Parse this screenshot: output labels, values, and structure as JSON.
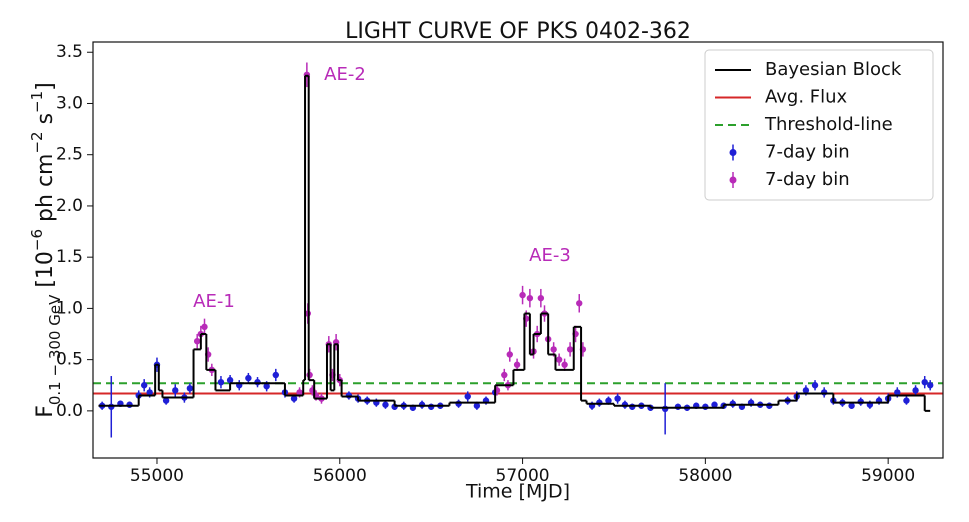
{
  "chart_data": {
    "type": "scatter",
    "title": "LIGHT CURVE OF PKS 0402-362",
    "xlabel": "Time [MJD]",
    "ylabel": [
      "F",
      "0.1 − 300 GeV",
      " [10",
      "−6",
      " ph cm",
      "−2",
      " s",
      "−1",
      "]"
    ],
    "xlim": [
      54650,
      59300
    ],
    "ylim": [
      -0.46,
      3.6
    ],
    "xticks": [
      55000,
      56000,
      57000,
      58000,
      59000
    ],
    "yticks": [
      {
        "value": 0,
        "label": "0.0"
      },
      0.5,
      {
        "value": 1,
        "label": "1.0"
      },
      1.5,
      {
        "value": 2,
        "label": "2.0"
      },
      2.5,
      {
        "value": 3,
        "label": "3.0"
      },
      3.5
    ],
    "legend": "upper right",
    "blocks": {
      "name": "Bayesian Block",
      "color": "#000000",
      "edges": [
        54680,
        54900,
        54990,
        55010,
        55030,
        55200,
        55240,
        55270,
        55320,
        55400,
        55700,
        55800,
        55810,
        55830,
        55860,
        55930,
        55950,
        55970,
        55990,
        56010,
        56100,
        56300,
        56600,
        56850,
        56950,
        57010,
        57040,
        57060,
        57100,
        57140,
        57180,
        57280,
        57320,
        57350,
        57500,
        57700,
        58100,
        58400,
        58500,
        58700,
        59000,
        59200,
        59230
      ],
      "values": [
        0.05,
        0.15,
        0.45,
        0.2,
        0.13,
        0.6,
        0.75,
        0.4,
        0.2,
        0.27,
        0.15,
        0.3,
        3.27,
        0.3,
        0.12,
        0.65,
        0.2,
        0.65,
        0.3,
        0.14,
        0.1,
        0.05,
        0.08,
        0.25,
        0.4,
        0.95,
        0.55,
        0.75,
        0.95,
        0.55,
        0.4,
        0.82,
        0.1,
        0.07,
        0.05,
        0.03,
        0.06,
        0.1,
        0.17,
        0.08,
        0.15,
        0.0
      ]
    },
    "avg_flux": {
      "name": "Avg. Flux",
      "value": 0.17,
      "color": "#d62728"
    },
    "threshold": {
      "name": "Threshold-line",
      "value": 0.27,
      "color": "#2ca02c",
      "dashed": true
    },
    "series": [
      {
        "name": "7-day bin",
        "color": "#1f1fd6",
        "x": [
          54700,
          54750,
          54800,
          54850,
          54900,
          54930,
          54960,
          55000,
          55050,
          55100,
          55150,
          55180,
          55350,
          55400,
          55450,
          55500,
          55550,
          55600,
          55650,
          55700,
          55750,
          56050,
          56100,
          56150,
          56200,
          56250,
          56300,
          56350,
          56400,
          56450,
          56500,
          56550,
          56650,
          56700,
          56750,
          56800,
          56850,
          57380,
          57420,
          57470,
          57520,
          57560,
          57600,
          57650,
          57700,
          57780,
          57850,
          57900,
          57950,
          58000,
          58050,
          58100,
          58150,
          58200,
          58250,
          58300,
          58350,
          58450,
          58500,
          58550,
          58600,
          58650,
          58700,
          58750,
          58800,
          58850,
          58900,
          58950,
          59000,
          59050,
          59100,
          59150,
          59200,
          59230
        ],
        "values": [
          0.05,
          0.04,
          0.07,
          0.06,
          0.15,
          0.25,
          0.18,
          0.45,
          0.1,
          0.2,
          0.13,
          0.22,
          0.28,
          0.3,
          0.25,
          0.32,
          0.28,
          0.24,
          0.35,
          0.18,
          0.12,
          0.15,
          0.12,
          0.1,
          0.08,
          0.06,
          0.04,
          0.05,
          0.03,
          0.06,
          0.04,
          0.05,
          0.07,
          0.14,
          0.05,
          0.1,
          0.18,
          0.05,
          0.08,
          0.1,
          0.12,
          0.06,
          0.04,
          0.05,
          0.03,
          0.02,
          0.04,
          0.03,
          0.05,
          0.04,
          0.06,
          0.05,
          0.07,
          0.04,
          0.08,
          0.06,
          0.05,
          0.1,
          0.14,
          0.2,
          0.25,
          0.18,
          0.1,
          0.08,
          0.05,
          0.09,
          0.06,
          0.1,
          0.12,
          0.18,
          0.1,
          0.2,
          0.28,
          0.25
        ],
        "errors": [
          0.04,
          0.3,
          0.03,
          0.03,
          0.05,
          0.06,
          0.05,
          0.07,
          0.04,
          0.06,
          0.05,
          0.05,
          0.06,
          0.05,
          0.05,
          0.05,
          0.05,
          0.05,
          0.06,
          0.05,
          0.04,
          0.04,
          0.04,
          0.04,
          0.04,
          0.04,
          0.03,
          0.04,
          0.03,
          0.04,
          0.03,
          0.03,
          0.04,
          0.05,
          0.04,
          0.04,
          0.05,
          0.04,
          0.04,
          0.04,
          0.05,
          0.04,
          0.03,
          0.03,
          0.03,
          0.25,
          0.03,
          0.03,
          0.03,
          0.03,
          0.03,
          0.03,
          0.04,
          0.03,
          0.04,
          0.03,
          0.03,
          0.04,
          0.05,
          0.05,
          0.05,
          0.05,
          0.04,
          0.04,
          0.03,
          0.04,
          0.04,
          0.04,
          0.05,
          0.05,
          0.04,
          0.05,
          0.06,
          0.05
        ]
      },
      {
        "name": "7-day bin",
        "color": "#b82bb8",
        "x": [
          55220,
          55240,
          55260,
          55280,
          55300,
          55780,
          55820,
          55825,
          55835,
          55850,
          55870,
          55900,
          55940,
          55960,
          55980,
          56000,
          56860,
          56900,
          56920,
          56930,
          56970,
          57000,
          57020,
          57040,
          57060,
          57080,
          57100,
          57120,
          57140,
          57170,
          57200,
          57230,
          57260,
          57290,
          57310,
          57330
        ],
        "values": [
          0.68,
          0.75,
          0.82,
          0.55,
          0.4,
          0.18,
          3.28,
          0.95,
          0.35,
          0.2,
          0.15,
          0.12,
          0.65,
          0.35,
          0.67,
          0.3,
          0.2,
          0.35,
          0.25,
          0.55,
          0.45,
          1.13,
          0.9,
          1.1,
          0.58,
          0.75,
          1.1,
          0.95,
          0.7,
          0.6,
          0.5,
          0.45,
          0.6,
          0.75,
          1.05,
          0.6
        ],
        "errors": [
          0.07,
          0.08,
          0.08,
          0.07,
          0.06,
          0.05,
          0.12,
          0.1,
          0.06,
          0.05,
          0.05,
          0.05,
          0.08,
          0.06,
          0.08,
          0.06,
          0.05,
          0.06,
          0.05,
          0.07,
          0.06,
          0.09,
          0.08,
          0.09,
          0.07,
          0.08,
          0.09,
          0.08,
          0.07,
          0.07,
          0.06,
          0.06,
          0.07,
          0.08,
          0.09,
          0.07
        ]
      }
    ],
    "annotations": [
      {
        "text": "AE-1"
      },
      {
        "text": "AE-2"
      },
      {
        "text": "AE-3"
      }
    ]
  }
}
